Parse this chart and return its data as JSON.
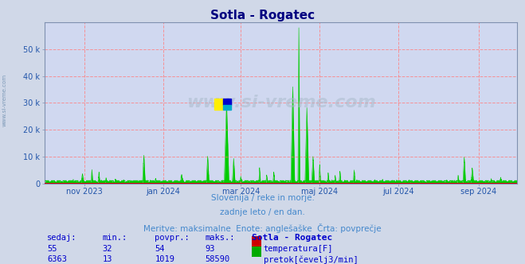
{
  "title": "Sotla - Rogatec",
  "title_color": "#000080",
  "bg_color": "#d0d8e8",
  "plot_bg_color": "#d0d8f0",
  "grid_color": "#ff8080",
  "ylim": [
    0,
    60000
  ],
  "yticks": [
    0,
    10000,
    20000,
    30000,
    40000,
    50000
  ],
  "ytick_labels": [
    "0",
    "10 k",
    "20 k",
    "30 k",
    "40 k",
    "50 k"
  ],
  "temp_color": "#cc0000",
  "flow_color": "#00cc00",
  "avg_flow_value": 1019,
  "avg_temp_value": 54,
  "watermark": "www.si-vreme.com",
  "subtitle1": "Slovenija / reke in morje.",
  "subtitle2": "zadnje leto / en dan.",
  "subtitle3": "Meritve: maksimalne  Enote: anglešaške  Črta: povprečje",
  "subtitle_color": "#4488cc",
  "table_headers": [
    "sedaj:",
    "min.:",
    "povpr.:",
    "maks.:",
    "Sotla - Rogatec"
  ],
  "table_color": "#0000cc",
  "row1_vals": [
    "55",
    "32",
    "54",
    "93"
  ],
  "row1_label": "temperatura[F]",
  "row1_color": "#cc0000",
  "row2_vals": [
    "6363",
    "13",
    "1019",
    "58590"
  ],
  "row2_label": "pretok[čevelj3/min]",
  "row2_color": "#00aa00",
  "xmin": 1696118400,
  "xmax": 1727740800,
  "x_months": [
    {
      "label": "nov 2023",
      "ts": 1698796800
    },
    {
      "label": "jan 2024",
      "ts": 1704067200
    },
    {
      "label": "mar 2024",
      "ts": 1709251200
    },
    {
      "label": "maj 2024",
      "ts": 1714521600
    },
    {
      "label": "jul 2024",
      "ts": 1719792000
    },
    {
      "label": "sep 2024",
      "ts": 1725148800
    }
  ],
  "logo_color_yellow": "#ffee00",
  "logo_color_blue": "#0000cc",
  "logo_color_teal": "#00aacc",
  "left_label": "www.si-vreme.com",
  "left_label_color": "#6688aa"
}
